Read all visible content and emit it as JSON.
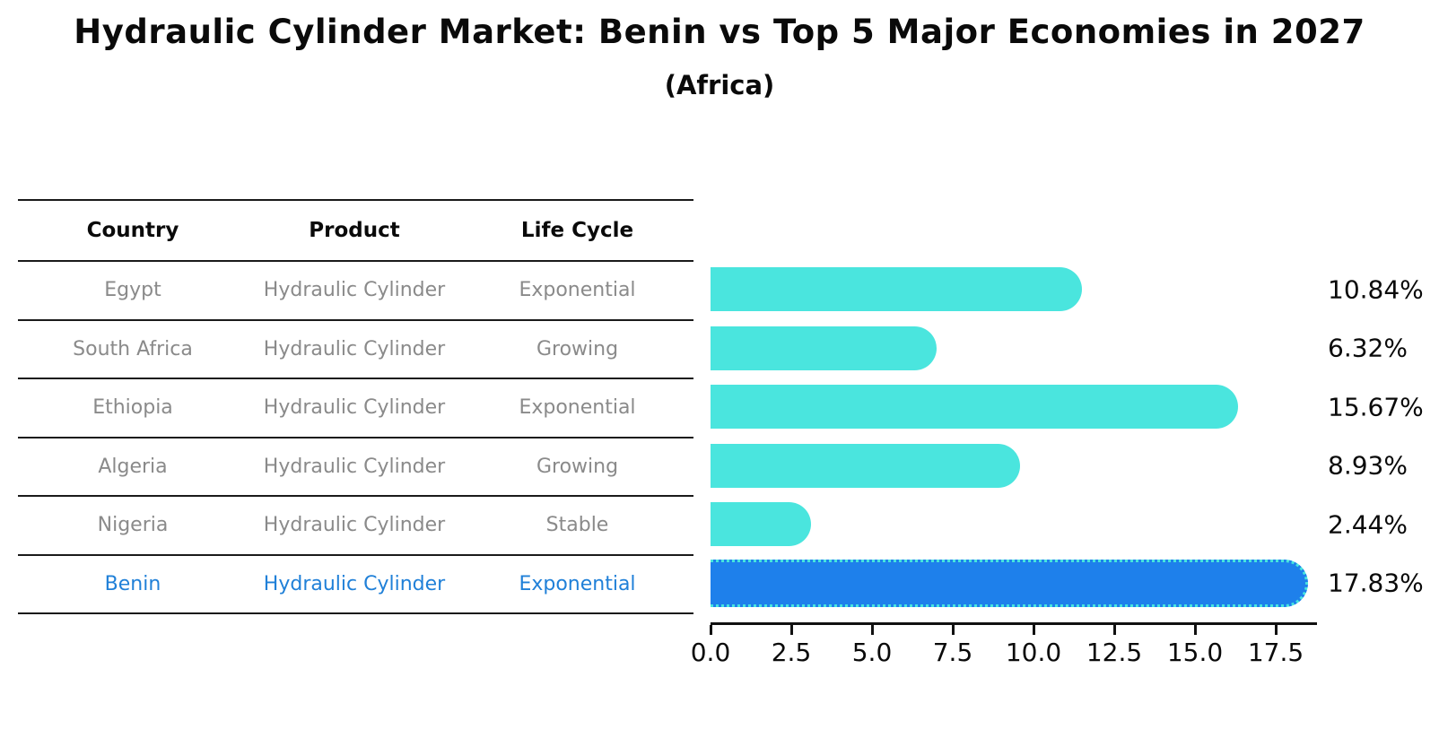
{
  "title": "Hydraulic Cylinder Market: Benin vs Top 5 Major Economies in 2027",
  "subtitle": "(Africa)",
  "table": {
    "headers": [
      "Country",
      "Product",
      "Life Cycle"
    ],
    "rows": [
      {
        "country": "Egypt",
        "product": "Hydraulic Cylinder",
        "life_cycle": "Exponential",
        "highlight": false
      },
      {
        "country": "South Africa",
        "product": "Hydraulic Cylinder",
        "life_cycle": "Growing",
        "highlight": false
      },
      {
        "country": "Ethiopia",
        "product": "Hydraulic Cylinder",
        "life_cycle": "Exponential",
        "highlight": false
      },
      {
        "country": "Algeria",
        "product": "Hydraulic Cylinder",
        "life_cycle": "Growing",
        "highlight": false
      },
      {
        "country": "Nigeria",
        "product": "Hydraulic Cylinder",
        "life_cycle": "Stable",
        "highlight": false
      },
      {
        "country": "Benin",
        "product": "Hydraulic Cylinder",
        "life_cycle": "Exponential",
        "highlight": true
      }
    ]
  },
  "chart_data": {
    "type": "bar",
    "orientation": "horizontal",
    "title": "Hydraulic Cylinder Market: Benin vs Top 5 Major Economies in 2027 (Africa)",
    "categories": [
      "Egypt",
      "South Africa",
      "Ethiopia",
      "Algeria",
      "Nigeria",
      "Benin"
    ],
    "values": [
      10.84,
      6.32,
      15.67,
      8.93,
      2.44,
      17.83
    ],
    "labels": [
      "10.84%",
      "6.32%",
      "15.67%",
      "8.93%",
      "2.44%",
      "17.83%"
    ],
    "x_ticks": [
      "0.0",
      "2.5",
      "5.0",
      "7.5",
      "10.0",
      "12.5",
      "15.0",
      "17.5"
    ],
    "xlim": [
      0,
      18.8
    ],
    "grid": false,
    "legend": "none",
    "bar_color": "#4ae5de",
    "highlight_index": 5,
    "highlight_color": "#1e80eb",
    "highlight_border_color": "#48e5de",
    "highlight_border_style": "dotted"
  },
  "colors": {
    "title_text": "#0a0a0a",
    "table_text": "#8a8a8a",
    "highlight_text": "#2080d8",
    "table_line": "#1a1a1a"
  }
}
